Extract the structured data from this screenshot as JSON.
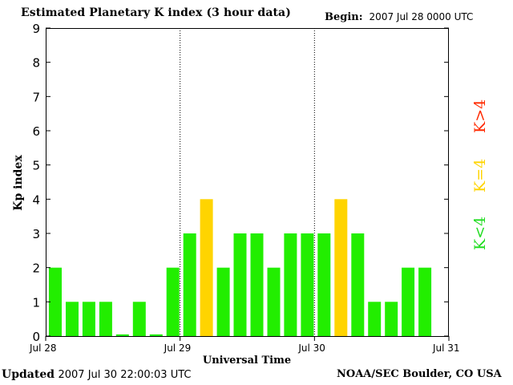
{
  "header": {
    "title": "Estimated Planetary K index (3 hour data)",
    "begin_label": "Begin:",
    "begin_value": "2007 Jul 28 0000 UTC"
  },
  "footer": {
    "updated_label": "Updated",
    "updated_value": "2007 Jul 30 22:00:03 UTC",
    "source": "NOAA/SEC Boulder, CO USA"
  },
  "legend": {
    "above": {
      "label": "K>4",
      "color": "#ff2a00"
    },
    "equal": {
      "label": "K=4",
      "color": "#ffd400"
    },
    "below": {
      "label": "K<4",
      "color": "#22dd22"
    }
  },
  "chart_data": {
    "type": "bar",
    "title": "Estimated Planetary K index (3 hour data)",
    "xlabel": "Universal Time",
    "ylabel": "Kp index",
    "ylim": [
      0,
      9
    ],
    "yticks": [
      0,
      1,
      2,
      3,
      4,
      5,
      6,
      7,
      8,
      9
    ],
    "xticks": [
      "Jul 28",
      "Jul 29",
      "Jul 30",
      "Jul 31"
    ],
    "slots_per_day": 8,
    "grid": false,
    "day_separators": true,
    "values": [
      2,
      1,
      1,
      1,
      0.05,
      1,
      0.05,
      2,
      3,
      4,
      2,
      3,
      3,
      2,
      3,
      3,
      3,
      4,
      3,
      1,
      1,
      2,
      2
    ],
    "colors": {
      "below": "#22ee00",
      "equal": "#ffd400",
      "above": "#ff2a00"
    },
    "legend_position": "right"
  }
}
